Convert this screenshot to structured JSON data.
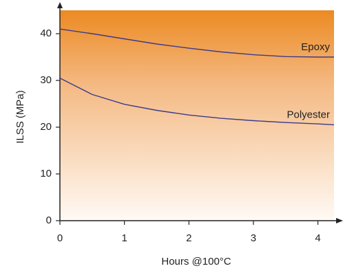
{
  "chart_data": {
    "type": "line",
    "x_label": "Hours @100°C",
    "y_label": "ILSS (MPa)",
    "x": [
      0,
      0.5,
      1,
      1.5,
      2,
      2.5,
      3,
      3.5,
      4,
      4.25
    ],
    "series": [
      {
        "name": "Epoxy",
        "color": "#3b3a8a",
        "values": [
          41,
          40,
          38.9,
          37.8,
          36.9,
          36.1,
          35.5,
          35.1,
          35,
          35
        ]
      },
      {
        "name": "Polyester",
        "color": "#3b3a8a",
        "values": [
          30.5,
          27,
          24.9,
          23.6,
          22.6,
          21.9,
          21.4,
          21,
          20.7,
          20.5
        ]
      }
    ],
    "xlim": [
      0,
      4.25
    ],
    "xticks": [
      0,
      1,
      2,
      3,
      4
    ],
    "ylim": [
      0,
      45
    ],
    "yticks": [
      0,
      10,
      20,
      30,
      40
    ]
  }
}
